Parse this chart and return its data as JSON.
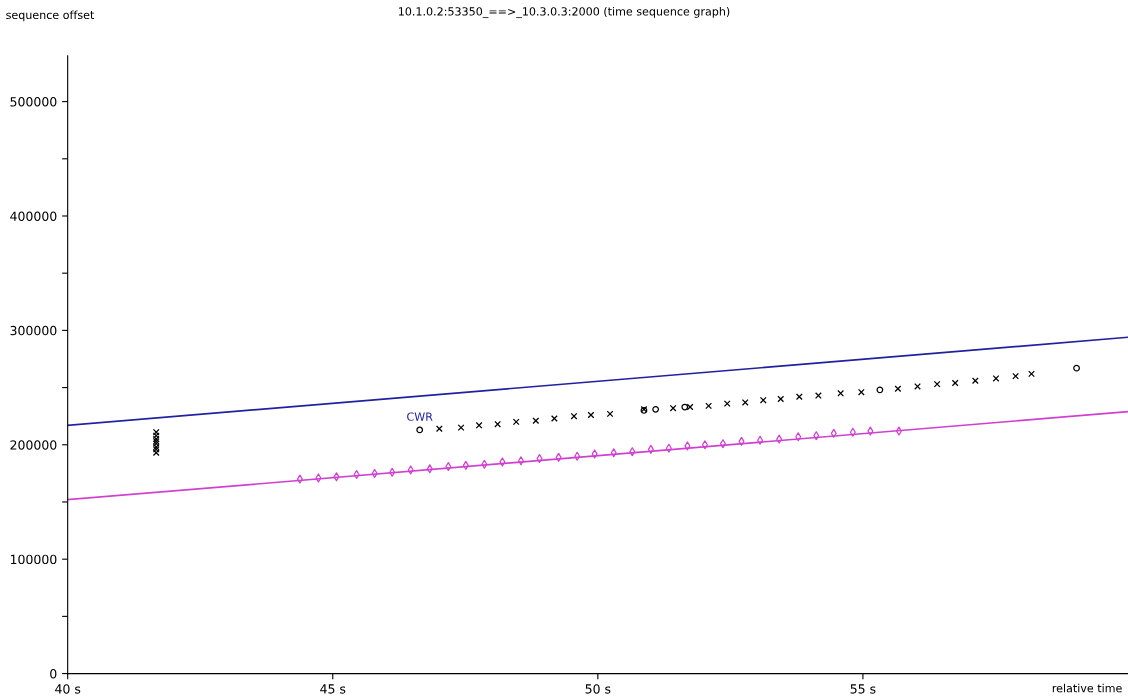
{
  "chart_data": {
    "type": "scatter",
    "title": "10.1.0.2:53350_==>_10.3.0.3:2000 (time sequence graph)",
    "xlabel": "relative time",
    "ylabel": "sequence offset",
    "xlim": [
      40,
      60
    ],
    "ylim": [
      0,
      540000
    ],
    "xticks": [
      {
        "value": 40,
        "label": "40 s"
      },
      {
        "value": 45,
        "label": "45 s"
      },
      {
        "value": 50,
        "label": "50 s"
      },
      {
        "value": 55,
        "label": "55 s"
      }
    ],
    "yticks": [
      0,
      {
        "value": 50000,
        "label": null
      },
      100000,
      {
        "value": 150000,
        "label": null
      },
      200000,
      {
        "value": 250000,
        "label": null
      },
      300000,
      {
        "value": 350000,
        "label": null
      },
      400000,
      {
        "value": 450000,
        "label": null
      },
      500000
    ],
    "grid": false,
    "legend": false,
    "annotations": [
      {
        "text": "CWR",
        "x": 46.64,
        "y": 213000
      }
    ],
    "series": [
      {
        "type": "line",
        "color": "#2020a0",
        "marker": "none",
        "x": [
          40,
          60
        ],
        "values": [
          217000,
          294000
        ]
      },
      {
        "type": "line",
        "color": "#d040d0",
        "marker": "none",
        "x": [
          40,
          60
        ],
        "values": [
          152000,
          229000
        ]
      },
      {
        "color": "#000000",
        "marker": "cross",
        "x": [
          41.67,
          41.67,
          41.67,
          41.67,
          41.67,
          41.67,
          41.67,
          41.67,
          47.01,
          47.42,
          47.76,
          48.11,
          48.46,
          48.83,
          49.18,
          49.55,
          49.87,
          50.23,
          50.87,
          51.42,
          51.74,
          52.09,
          52.44,
          52.78,
          53.12,
          53.45,
          53.8,
          54.16,
          54.58,
          54.97,
          55.66,
          56.03,
          56.4,
          56.74,
          57.12,
          57.51,
          57.88,
          58.18
        ],
        "values": [
          193000,
          196000,
          198000,
          201000,
          203000,
          205000,
          208000,
          211000,
          214000,
          215000,
          217000,
          218000,
          220000,
          221000,
          223000,
          225000,
          226000,
          227000,
          231000,
          232000,
          233000,
          234000,
          236000,
          237000,
          239000,
          240000,
          242000,
          243000,
          245000,
          246000,
          249000,
          251000,
          253000,
          254000,
          256000,
          258000,
          260000,
          262000
        ]
      },
      {
        "color": "#000000",
        "marker": "circle",
        "x": [
          46.64,
          50.87,
          51.09,
          51.64,
          55.32,
          59.03
        ],
        "values": [
          213000,
          230000,
          231000,
          233000,
          248000,
          267000
        ]
      },
      {
        "color": "#d040d0",
        "marker": "diamond",
        "x": [
          44.38,
          44.73,
          45.07,
          45.45,
          45.79,
          46.12,
          46.47,
          46.83,
          47.18,
          47.51,
          47.86,
          48.2,
          48.55,
          48.9,
          49.26,
          49.61,
          49.94,
          50.3,
          50.65,
          51.0,
          51.34,
          51.69,
          52.02,
          52.36,
          52.71,
          53.06,
          53.42,
          53.78,
          54.12,
          54.45,
          54.81,
          55.14,
          55.68
        ],
        "values": [
          170000,
          171000,
          172000,
          174000,
          175000,
          176000,
          178000,
          179000,
          181000,
          182000,
          183000,
          185000,
          186000,
          188000,
          189000,
          190000,
          192000,
          193000,
          194000,
          196000,
          197000,
          199000,
          200000,
          201000,
          203000,
          204000,
          205000,
          207000,
          208000,
          210000,
          211000,
          212000,
          212000
        ]
      }
    ]
  }
}
